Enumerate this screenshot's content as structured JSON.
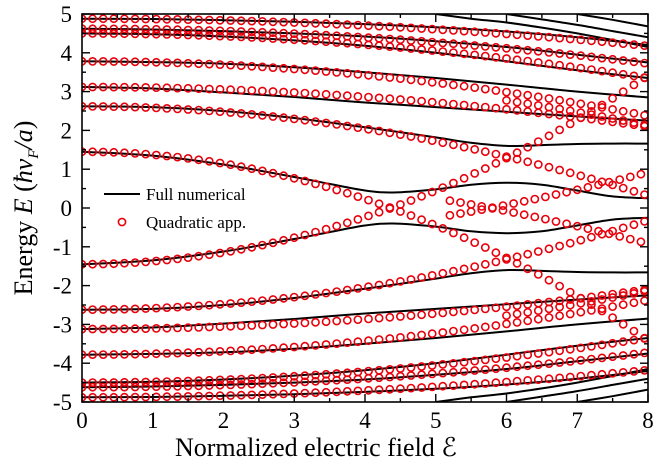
{
  "chart_data": {
    "type": "line",
    "xlabel": "Normalized electric field ℰ",
    "ylabel": "Energy E (ħv_F/a)",
    "ylabel_parts": {
      "pre": "Energy ",
      "E": "E",
      "paren_open": " (",
      "hbar": "ħ",
      "v": "v",
      "sub": "F",
      "slash_a": "/a",
      "paren_close": ")"
    },
    "xlim": [
      0,
      8
    ],
    "ylim": [
      -5,
      5
    ],
    "x_ticks": [
      0,
      1,
      2,
      3,
      4,
      5,
      6,
      7,
      8
    ],
    "y_ticks": [
      -5,
      -4,
      -3,
      -2,
      -1,
      0,
      1,
      2,
      3,
      4,
      5
    ],
    "x_tick_labels": [
      "0",
      "1",
      "2",
      "3",
      "4",
      "5",
      "6",
      "7",
      "8"
    ],
    "y_tick_labels": [
      "-5",
      "-4",
      "-3",
      "-2",
      "-1",
      "0",
      "1",
      "2",
      "3",
      "4",
      "5"
    ],
    "grid": false,
    "legend": {
      "position": "middle-left",
      "entries": [
        {
          "label": "Full numerical",
          "style": "line",
          "color": "#000000"
        },
        {
          "label": "Quadratic app.",
          "style": "open-circle",
          "color": "#e8000b"
        }
      ]
    },
    "series": [
      {
        "name": "Full numerical",
        "style": "line",
        "color": "#000000",
        "curves": [
          {
            "x": [
              0,
              1,
              2,
              3,
              3.5,
              4,
              4.4,
              5,
              5.5,
              6,
              6.5,
              7,
              7.5,
              8
            ],
            "y": [
              1.45,
              1.35,
              1.12,
              0.8,
              0.62,
              0.45,
              0.4,
              0.48,
              0.6,
              0.65,
              0.6,
              0.45,
              0.3,
              0.25
            ]
          },
          {
            "x": [
              0,
              1,
              2,
              3,
              3.5,
              4,
              4.4,
              5,
              5.5,
              6,
              6.5,
              7,
              7.5,
              8
            ],
            "y": [
              -1.45,
              -1.35,
              -1.12,
              -0.8,
              -0.62,
              -0.45,
              -0.4,
              -0.48,
              -0.6,
              -0.65,
              -0.6,
              -0.45,
              -0.3,
              -0.25
            ]
          },
          {
            "x": [
              0,
              1,
              2,
              3,
              4,
              5,
              5.5,
              6,
              6.5,
              7,
              7.5,
              8
            ],
            "y": [
              2.62,
              2.6,
              2.5,
              2.32,
              2.08,
              1.82,
              1.68,
              1.6,
              1.62,
              1.65,
              1.66,
              1.66
            ]
          },
          {
            "x": [
              0,
              1,
              2,
              3,
              4,
              5,
              5.5,
              6,
              6.5,
              7,
              7.5,
              8
            ],
            "y": [
              -2.62,
              -2.6,
              -2.5,
              -2.32,
              -2.08,
              -1.82,
              -1.68,
              -1.6,
              -1.62,
              -1.65,
              -1.66,
              -1.66
            ]
          },
          {
            "x": [
              0,
              1,
              2,
              3,
              4,
              5,
              6,
              7,
              8
            ],
            "y": [
              3.12,
              3.08,
              2.98,
              2.86,
              2.72,
              2.6,
              2.48,
              2.36,
              2.25
            ]
          },
          {
            "x": [
              0,
              1,
              2,
              3,
              4,
              5,
              6,
              7,
              8
            ],
            "y": [
              -3.12,
              -3.08,
              -2.98,
              -2.86,
              -2.72,
              -2.6,
              -2.48,
              -2.36,
              -2.25
            ]
          },
          {
            "x": [
              0,
              1,
              2,
              3,
              4,
              5,
              6,
              7,
              8
            ],
            "y": [
              3.78,
              3.76,
              3.72,
              3.63,
              3.5,
              3.35,
              3.18,
              3.0,
              2.85
            ]
          },
          {
            "x": [
              0,
              1,
              2,
              3,
              4,
              5,
              6,
              7,
              8
            ],
            "y": [
              -3.78,
              -3.76,
              -3.72,
              -3.63,
              -3.5,
              -3.35,
              -3.18,
              -3.0,
              -2.85
            ]
          },
          {
            "x": [
              0,
              1,
              2,
              3,
              4,
              5,
              6,
              7,
              8
            ],
            "y": [
              4.5,
              4.48,
              4.42,
              4.32,
              4.18,
              4.0,
              3.78,
              3.55,
              3.35
            ]
          },
          {
            "x": [
              0,
              1,
              2,
              3,
              4,
              5,
              6,
              7,
              8
            ],
            "y": [
              -4.5,
              -4.48,
              -4.42,
              -4.32,
              -4.18,
              -4.0,
              -3.78,
              -3.55,
              -3.35
            ]
          },
          {
            "x": [
              0,
              1,
              2,
              3,
              4,
              5,
              6,
              7,
              8
            ],
            "y": [
              4.62,
              4.6,
              4.56,
              4.5,
              4.42,
              4.3,
              4.15,
              3.95,
              3.75
            ]
          },
          {
            "x": [
              0,
              1,
              2,
              3,
              4,
              5,
              6,
              7,
              8
            ],
            "y": [
              -4.62,
              -4.6,
              -4.56,
              -4.5,
              -4.42,
              -4.3,
              -4.15,
              -3.95,
              -3.75
            ]
          },
          {
            "x": [
              0,
              1,
              2,
              3,
              4,
              5,
              6,
              7,
              8
            ],
            "y": [
              4.88,
              4.87,
              4.84,
              4.8,
              4.74,
              4.66,
              4.55,
              4.4,
              4.2
            ]
          },
          {
            "x": [
              0,
              1,
              2,
              3,
              4,
              5,
              6,
              7,
              8
            ],
            "y": [
              -4.88,
              -4.87,
              -4.84,
              -4.8,
              -4.74,
              -4.66,
              -4.55,
              -4.4,
              -4.2
            ]
          },
          {
            "x": [
              5,
              5.5,
              6,
              6.5,
              7,
              7.5,
              8
            ],
            "y": [
              -5.0,
              -4.88,
              -4.78,
              -4.65,
              -4.5,
              -4.33,
              -4.15
            ]
          },
          {
            "x": [
              6,
              6.5,
              7,
              7.5,
              8
            ],
            "y": [
              -5.0,
              -4.86,
              -4.72,
              -4.56,
              -4.4
            ]
          },
          {
            "x": [
              7,
              7.5,
              8
            ],
            "y": [
              -5.0,
              -4.85,
              -4.68
            ]
          },
          {
            "x": [
              5,
              5.5,
              6,
              6.5,
              7,
              7.5,
              8
            ],
            "y": [
              5.0,
              4.88,
              4.78,
              4.65,
              4.5,
              4.33,
              4.15
            ]
          },
          {
            "x": [
              6,
              6.5,
              7,
              7.5,
              8
            ],
            "y": [
              5.0,
              4.86,
              4.72,
              4.56,
              4.4
            ]
          },
          {
            "x": [
              7,
              7.5,
              8
            ],
            "y": [
              5.0,
              4.85,
              4.68
            ]
          }
        ]
      },
      {
        "name": "Quadratic app.",
        "style": "open-circle",
        "color": "#e8000b",
        "step": 0.15,
        "curves": [
          {
            "x": [
              0,
              8
            ],
            "c0": 1.45,
            "c2": -0.076
          },
          {
            "x": [
              0,
              8
            ],
            "c0": -1.45,
            "c2": 0.076
          },
          {
            "x": [
              0,
              8
            ],
            "c0": 2.62,
            "c2": -0.036
          },
          {
            "x": [
              0,
              8
            ],
            "c0": -2.62,
            "c2": 0.036
          },
          {
            "x": [
              0,
              8
            ],
            "c0": 3.12,
            "c2": -0.016
          },
          {
            "x": [
              0,
              8
            ],
            "c0": -3.12,
            "c2": 0.016
          },
          {
            "x": [
              0,
              8
            ],
            "c0": 3.78,
            "c2": -0.022
          },
          {
            "x": [
              0,
              8
            ],
            "c0": -3.78,
            "c2": 0.022
          },
          {
            "x": [
              0,
              8
            ],
            "c0": 4.5,
            "c2": -0.018
          },
          {
            "x": [
              0,
              8
            ],
            "c0": -4.5,
            "c2": 0.018
          },
          {
            "x": [
              0,
              8
            ],
            "c0": 4.62,
            "c2": -0.014
          },
          {
            "x": [
              0,
              8
            ],
            "c0": -4.62,
            "c2": 0.014
          },
          {
            "x": [
              0,
              8
            ],
            "c0": 4.88,
            "c2": -0.011
          },
          {
            "x": [
              0,
              8
            ],
            "c0": -4.88,
            "c2": 0.011
          },
          {
            "x": [
              5.2,
              8
            ],
            "c0": 1.0,
            "c2": -0.03
          },
          {
            "x": [
              5.2,
              8
            ],
            "c0": -1.0,
            "c2": 0.03
          },
          {
            "x": [
              6.0,
              8
            ],
            "c0": 3.6,
            "c2": -0.023
          },
          {
            "x": [
              6.0,
              8
            ],
            "c0": -3.6,
            "c2": 0.023
          }
        ]
      }
    ]
  }
}
